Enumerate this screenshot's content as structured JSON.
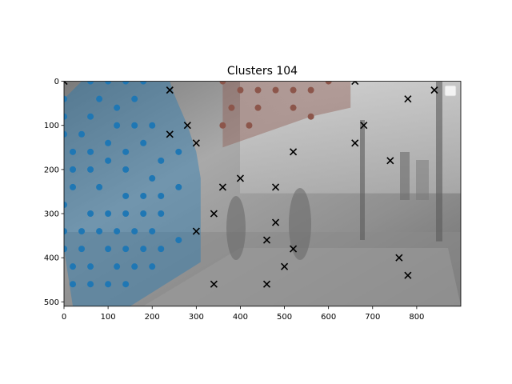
{
  "chart_data": {
    "type": "scatter",
    "title": "Clusters 104",
    "xlabel": "",
    "ylabel": "",
    "xlim": [
      0,
      900
    ],
    "ylim": [
      510,
      0
    ],
    "x_ticks": [
      0,
      100,
      200,
      300,
      400,
      500,
      600,
      700,
      800
    ],
    "y_ticks": [
      0,
      100,
      200,
      300,
      400,
      500
    ],
    "grid": false,
    "legend": {
      "placement": "top-right",
      "entries": [
        ""
      ]
    },
    "background": "grayscale street-scene photo with pedestrians crossing",
    "colors": {
      "cluster_blue": "#1f77b4",
      "cluster_brown": "#8c564b",
      "outlier": "#000000"
    },
    "clusters": [
      {
        "color": "#1f77b4",
        "hull": [
          [
            0,
            40
          ],
          [
            40,
            0
          ],
          [
            240,
            0
          ],
          [
            250,
            30
          ],
          [
            280,
            100
          ],
          [
            300,
            160
          ],
          [
            310,
            220
          ],
          [
            310,
            410
          ],
          [
            150,
            510
          ],
          [
            20,
            510
          ],
          [
            0,
            380
          ]
        ],
        "points": [
          [
            0,
            40
          ],
          [
            0,
            80
          ],
          [
            0,
            120
          ],
          [
            0,
            280
          ],
          [
            0,
            340
          ],
          [
            0,
            380
          ],
          [
            60,
            0
          ],
          [
            100,
            0
          ],
          [
            140,
            0
          ],
          [
            180,
            0
          ],
          [
            80,
            40
          ],
          [
            160,
            40
          ],
          [
            120,
            60
          ],
          [
            60,
            80
          ],
          [
            120,
            100
          ],
          [
            160,
            100
          ],
          [
            200,
            100
          ],
          [
            40,
            120
          ],
          [
            100,
            140
          ],
          [
            180,
            140
          ],
          [
            20,
            160
          ],
          [
            60,
            160
          ],
          [
            140,
            160
          ],
          [
            260,
            160
          ],
          [
            100,
            180
          ],
          [
            220,
            180
          ],
          [
            20,
            200
          ],
          [
            60,
            200
          ],
          [
            140,
            200
          ],
          [
            200,
            220
          ],
          [
            20,
            240
          ],
          [
            80,
            240
          ],
          [
            260,
            240
          ],
          [
            140,
            260
          ],
          [
            180,
            260
          ],
          [
            220,
            260
          ],
          [
            60,
            300
          ],
          [
            100,
            300
          ],
          [
            140,
            300
          ],
          [
            180,
            300
          ],
          [
            220,
            300
          ],
          [
            40,
            340
          ],
          [
            80,
            340
          ],
          [
            120,
            340
          ],
          [
            160,
            340
          ],
          [
            200,
            340
          ],
          [
            260,
            360
          ],
          [
            0,
            380
          ],
          [
            40,
            380
          ],
          [
            100,
            380
          ],
          [
            140,
            380
          ],
          [
            180,
            380
          ],
          [
            220,
            380
          ],
          [
            20,
            420
          ],
          [
            60,
            420
          ],
          [
            120,
            420
          ],
          [
            160,
            420
          ],
          [
            200,
            420
          ],
          [
            20,
            460
          ],
          [
            60,
            460
          ],
          [
            100,
            460
          ],
          [
            140,
            460
          ]
        ]
      },
      {
        "color": "#8c564b",
        "hull": [
          [
            360,
            0
          ],
          [
            650,
            0
          ],
          [
            650,
            60
          ],
          [
            560,
            80
          ],
          [
            360,
            150
          ]
        ],
        "points": [
          [
            360,
            0
          ],
          [
            600,
            0
          ],
          [
            400,
            20
          ],
          [
            440,
            20
          ],
          [
            480,
            20
          ],
          [
            520,
            20
          ],
          [
            560,
            20
          ],
          [
            380,
            60
          ],
          [
            440,
            60
          ],
          [
            520,
            60
          ],
          [
            560,
            80
          ],
          [
            360,
            100
          ],
          [
            420,
            100
          ]
        ]
      }
    ],
    "outliers": [
      [
        0,
        0
      ],
      [
        660,
        0
      ],
      [
        240,
        20
      ],
      [
        840,
        20
      ],
      [
        780,
        40
      ],
      [
        280,
        100
      ],
      [
        680,
        100
      ],
      [
        240,
        120
      ],
      [
        300,
        140
      ],
      [
        660,
        140
      ],
      [
        520,
        160
      ],
      [
        740,
        180
      ],
      [
        400,
        220
      ],
      [
        360,
        240
      ],
      [
        480,
        240
      ],
      [
        340,
        300
      ],
      [
        480,
        320
      ],
      [
        300,
        340
      ],
      [
        460,
        360
      ],
      [
        520,
        380
      ],
      [
        760,
        400
      ],
      [
        500,
        420
      ],
      [
        780,
        440
      ],
      [
        340,
        460
      ],
      [
        460,
        460
      ]
    ]
  }
}
